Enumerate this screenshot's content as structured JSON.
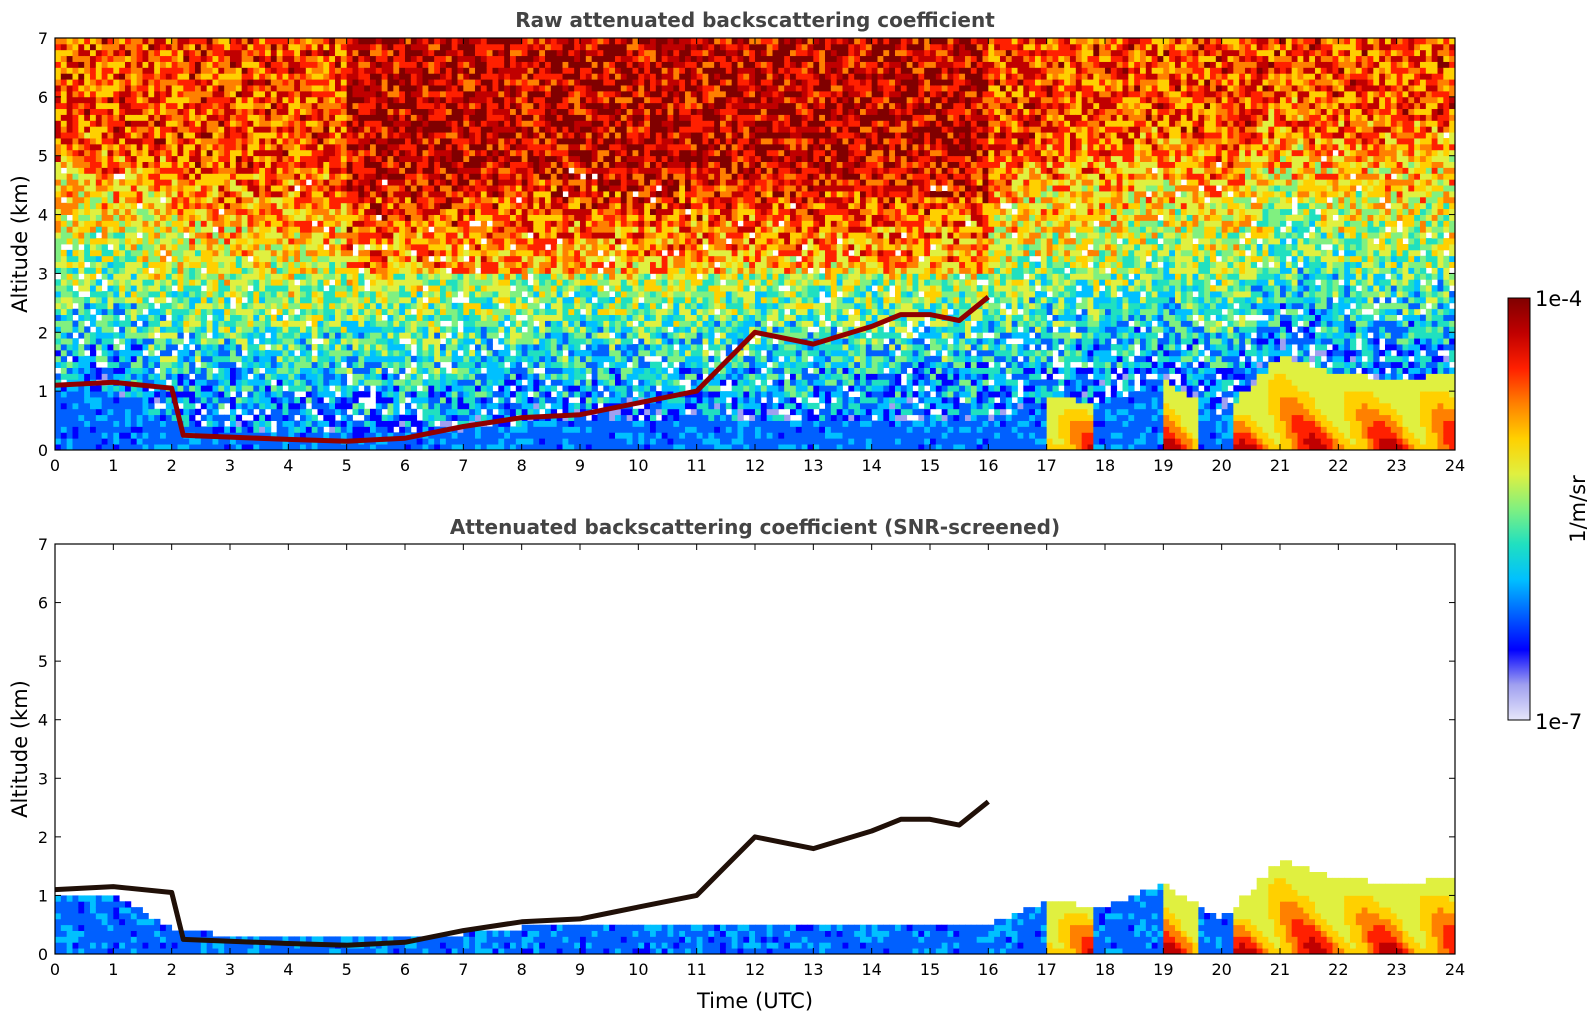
{
  "colorbar": {
    "max_label": "1e-4",
    "min_label": "1e-7",
    "unit": "1/m/sr",
    "colormap": [
      "#e6e6fa",
      "#a0a0f0",
      "#0000ff",
      "#0060ff",
      "#00c0ff",
      "#20e0c0",
      "#80f080",
      "#e0f040",
      "#ffd000",
      "#ff8000",
      "#ff2000",
      "#c00000",
      "#800000"
    ]
  },
  "chart_data": [
    {
      "type": "heatmap",
      "title": "Raw attenuated backscattering coefficient",
      "xlabel": "",
      "ylabel": "Altitude (km)",
      "xlim": [
        0,
        24
      ],
      "ylim": [
        0,
        7
      ],
      "x_ticks": [
        "0",
        "1",
        "2",
        "3",
        "4",
        "5",
        "6",
        "7",
        "8",
        "9",
        "10",
        "11",
        "12",
        "13",
        "14",
        "15",
        "16",
        "17",
        "18",
        "19",
        "20",
        "21",
        "22",
        "23",
        "24"
      ],
      "y_ticks": [
        "0",
        "1",
        "2",
        "3",
        "4",
        "5",
        "6",
        "7"
      ],
      "value_range": [
        "1e-7",
        "1e-4"
      ],
      "features": {
        "cloud_layer_km": [
          [
            0,
            1.1
          ],
          [
            1,
            1.15
          ],
          [
            2,
            1.05
          ],
          [
            2.2,
            0.25
          ],
          [
            4,
            0.18
          ],
          [
            5,
            0.15
          ],
          [
            6,
            0.2
          ],
          [
            7,
            0.4
          ],
          [
            8,
            0.55
          ],
          [
            9,
            0.6
          ],
          [
            9.5,
            0.7
          ],
          [
            10,
            0.8
          ],
          [
            11,
            1.0
          ],
          [
            11.5,
            1.5
          ],
          [
            12,
            2.0
          ],
          [
            13,
            1.8
          ],
          [
            14,
            2.1
          ],
          [
            14.5,
            2.3
          ],
          [
            15,
            2.3
          ],
          [
            15.5,
            2.2
          ],
          [
            16,
            2.6
          ]
        ],
        "boundary_layer_top_km": [
          [
            0,
            1.0
          ],
          [
            1,
            1.0
          ],
          [
            2,
            0.45
          ],
          [
            3,
            0.3
          ],
          [
            6,
            0.3
          ],
          [
            7,
            0.35
          ],
          [
            8,
            0.45
          ],
          [
            9,
            0.5
          ],
          [
            10,
            0.5
          ],
          [
            11,
            0.5
          ],
          [
            12,
            0.5
          ],
          [
            13,
            0.5
          ],
          [
            14,
            0.5
          ],
          [
            15,
            0.5
          ],
          [
            16,
            0.5
          ],
          [
            17,
            0.9
          ],
          [
            18,
            0.8
          ],
          [
            19,
            1.2
          ],
          [
            20,
            0.6
          ],
          [
            21,
            1.6
          ],
          [
            22,
            1.3
          ],
          [
            23,
            1.2
          ],
          [
            24,
            1.3
          ]
        ]
      }
    },
    {
      "type": "heatmap",
      "title": "Attenuated backscattering coefficient (SNR-screened)",
      "xlabel": "Time (UTC)",
      "ylabel": "Altitude (km)",
      "xlim": [
        0,
        24
      ],
      "ylim": [
        0,
        7
      ],
      "x_ticks": [
        "0",
        "1",
        "2",
        "3",
        "4",
        "5",
        "6",
        "7",
        "8",
        "9",
        "10",
        "11",
        "12",
        "13",
        "14",
        "15",
        "16",
        "17",
        "18",
        "19",
        "20",
        "21",
        "22",
        "23",
        "24"
      ],
      "y_ticks": [
        "0",
        "1",
        "2",
        "3",
        "4",
        "5",
        "6",
        "7"
      ],
      "value_range": [
        "1e-7",
        "1e-4"
      ],
      "features": {
        "cloud_layer_km": [
          [
            0,
            1.1
          ],
          [
            1,
            1.15
          ],
          [
            2,
            1.05
          ],
          [
            2.2,
            0.25
          ],
          [
            4,
            0.18
          ],
          [
            5,
            0.15
          ],
          [
            6,
            0.2
          ],
          [
            7,
            0.4
          ],
          [
            8,
            0.55
          ],
          [
            9,
            0.6
          ],
          [
            9.5,
            0.7
          ],
          [
            10,
            0.8
          ],
          [
            11,
            1.0
          ],
          [
            11.5,
            1.5
          ],
          [
            12,
            2.0
          ],
          [
            13,
            1.8
          ],
          [
            14,
            2.1
          ],
          [
            14.5,
            2.3
          ],
          [
            15,
            2.3
          ],
          [
            15.5,
            2.2
          ],
          [
            16,
            2.6
          ]
        ],
        "boundary_layer_top_km": [
          [
            0,
            1.0
          ],
          [
            1,
            1.0
          ],
          [
            2,
            0.45
          ],
          [
            3,
            0.3
          ],
          [
            6,
            0.3
          ],
          [
            7,
            0.35
          ],
          [
            8,
            0.45
          ],
          [
            9,
            0.5
          ],
          [
            10,
            0.5
          ],
          [
            11,
            0.5
          ],
          [
            12,
            0.5
          ],
          [
            13,
            0.5
          ],
          [
            14,
            0.5
          ],
          [
            15,
            0.5
          ],
          [
            16,
            0.5
          ],
          [
            17,
            0.9
          ],
          [
            18,
            0.8
          ],
          [
            19,
            1.2
          ],
          [
            20,
            0.6
          ],
          [
            21,
            1.6
          ],
          [
            22,
            1.3
          ],
          [
            23,
            1.2
          ],
          [
            24,
            1.3
          ]
        ]
      }
    }
  ]
}
